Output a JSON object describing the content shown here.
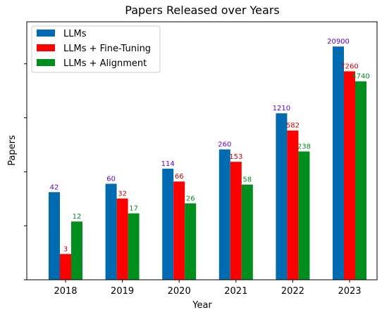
{
  "chart_data": {
    "type": "bar",
    "title": "Papers Released over Years",
    "xlabel": "Year",
    "ylabel": "Papers",
    "yscale": "log",
    "ylim": [
      1,
      60000
    ],
    "y_tick_labels_shown": false,
    "grid": false,
    "legend_position": "top-left",
    "categories": [
      "2018",
      "2019",
      "2020",
      "2021",
      "2022",
      "2023"
    ],
    "series": [
      {
        "name": "LLMs",
        "color": "#006bb0",
        "label_color": "#5a00c8",
        "values": [
          42,
          60,
          114,
          260,
          1210,
          20900
        ]
      },
      {
        "name": "LLMs + Fine-Tuning",
        "color": "#ff0000",
        "label_color": "#d40000",
        "values": [
          3,
          32,
          66,
          153,
          582,
          7260
        ]
      },
      {
        "name": "LLMs + Alignment",
        "color": "#008f1f",
        "label_color": "#008f1f",
        "values": [
          12,
          17,
          26,
          58,
          238,
          4740
        ]
      }
    ]
  }
}
